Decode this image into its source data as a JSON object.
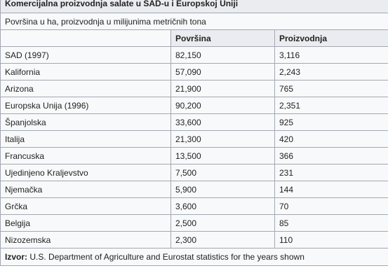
{
  "table": {
    "caption": "Komercijalna proizvodnja salate u SAD-u i Europskoj Uniji",
    "subtitle": "Površina u ha, proizvodnja u milijunima metričnih tona",
    "headers": [
      "",
      "Površina",
      "Proizvodnja"
    ],
    "rows": [
      {
        "name": "SAD (1997)",
        "area": "82,150",
        "production": "3,116"
      },
      {
        "name": "Kalifornia",
        "area": "57,090",
        "production": "2,243"
      },
      {
        "name": "Arizona",
        "area": "21,900",
        "production": "765"
      },
      {
        "name": "Europska Unija (1996)",
        "area": "90,200",
        "production": "2,351"
      },
      {
        "name": "Španjolska",
        "area": "33,600",
        "production": "925"
      },
      {
        "name": "Italija",
        "area": "21,300",
        "production": "420"
      },
      {
        "name": "Francuska",
        "area": "13,500",
        "production": "366"
      },
      {
        "name": "Ujedinjeno Kraljevstvo",
        "area": "7,500",
        "production": "231"
      },
      {
        "name": "Njemačka",
        "area": "5,900",
        "production": "144"
      },
      {
        "name": "Grčka",
        "area": "3,600",
        "production": "70"
      },
      {
        "name": "Belgija",
        "area": "2,500",
        "production": "85"
      },
      {
        "name": "Nizozemska",
        "area": "2,300",
        "production": "110"
      }
    ],
    "source_label": "Izvor:",
    "source_text": " U.S. Department of Agriculture and Eurostat statistics for the years shown"
  }
}
